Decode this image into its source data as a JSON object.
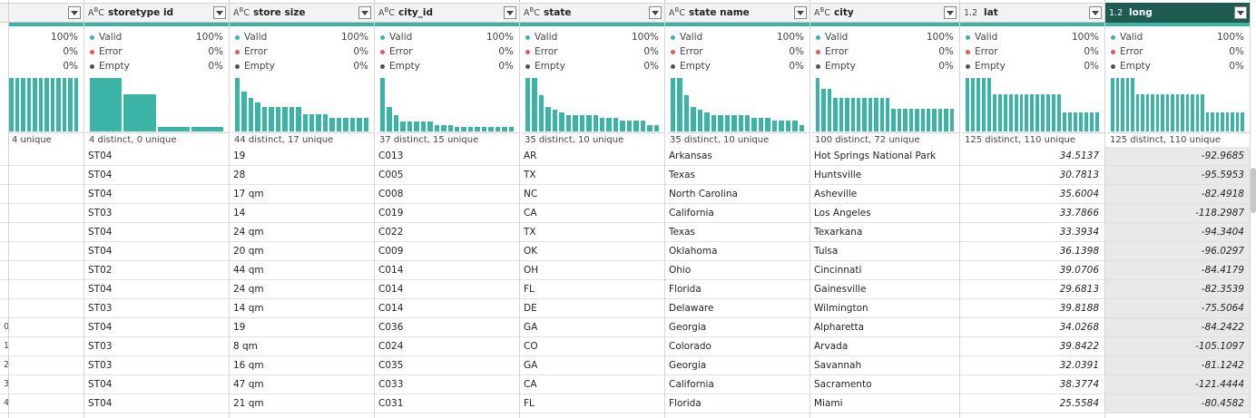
{
  "prev_column": {
    "valid_pct": "100%",
    "error_pct": "0%",
    "empty_pct": "0%",
    "distinct": "4 unique",
    "hist": [
      1,
      1,
      1,
      1,
      1,
      1,
      1,
      1,
      1,
      1,
      1,
      1
    ]
  },
  "row_index": [
    "",
    "",
    "",
    "",
    "",
    "",
    "",
    "",
    "",
    "0",
    "1",
    "2",
    "3",
    "4"
  ],
  "columns": [
    {
      "name": "storetype id",
      "type": "ABC",
      "valid_label": "Valid",
      "error_label": "Error",
      "empty_label": "Empty",
      "valid_pct": "100%",
      "error_pct": "0%",
      "empty_pct": "0%",
      "distinct": "4 distinct, 0 unique",
      "hist": [
        1.0,
        0.7,
        0.08,
        0.08
      ],
      "numeric": false,
      "values": [
        "ST04",
        "ST04",
        "ST04",
        "ST03",
        "ST04",
        "ST04",
        "ST02",
        "ST04",
        "ST03",
        "ST04",
        "ST03",
        "ST03",
        "ST04",
        "ST04"
      ]
    },
    {
      "name": "store size",
      "type": "ABC",
      "valid_label": "Valid",
      "error_label": "Error",
      "empty_label": "Empty",
      "valid_pct": "100%",
      "error_pct": "0%",
      "empty_pct": "0%",
      "distinct": "44 distinct, 17 unique",
      "hist": [
        1.0,
        0.75,
        0.62,
        0.55,
        0.45,
        0.45,
        0.45,
        0.45,
        0.45,
        0.45,
        0.32,
        0.32,
        0.32,
        0.32,
        0.26,
        0.26,
        0.26,
        0.26,
        0.26,
        0.26
      ],
      "numeric": false,
      "values": [
        "19",
        "28",
        "17 qm",
        "14",
        "24 qm",
        "20 qm",
        "44 qm",
        "24 qm",
        "14 qm",
        "19",
        "8 qm",
        "16 qm",
        "47 qm",
        "21 qm"
      ]
    },
    {
      "name": "city_id",
      "type": "ABC",
      "valid_label": "Valid",
      "error_label": "Error",
      "empty_label": "Empty",
      "valid_pct": "100%",
      "error_pct": "0%",
      "empty_pct": "0%",
      "distinct": "37 distinct, 15 unique",
      "hist": [
        1.0,
        0.45,
        0.3,
        0.18,
        0.18,
        0.18,
        0.18,
        0.18,
        0.12,
        0.12,
        0.12,
        0.08,
        0.08,
        0.08,
        0.08,
        0.08,
        0.08,
        0.08,
        0.08,
        0.08
      ],
      "numeric": false,
      "values": [
        "C013",
        "C005",
        "C008",
        "C019",
        "C022",
        "C009",
        "C014",
        "C014",
        "C014",
        "C036",
        "C024",
        "C035",
        "C033",
        "C031"
      ]
    },
    {
      "name": "state",
      "type": "ABC",
      "valid_label": "Valid",
      "error_label": "Error",
      "empty_label": "Empty",
      "valid_pct": "100%",
      "error_pct": "0%",
      "empty_pct": "0%",
      "distinct": "35 distinct, 10 unique",
      "hist": [
        1.0,
        1.0,
        0.68,
        0.45,
        0.4,
        0.35,
        0.3,
        0.3,
        0.3,
        0.3,
        0.3,
        0.25,
        0.25,
        0.25,
        0.2,
        0.2,
        0.2,
        0.2,
        0.12,
        0.12
      ],
      "numeric": false,
      "values": [
        "AR",
        "TX",
        "NC",
        "CA",
        "TX",
        "OK",
        "OH",
        "FL",
        "DE",
        "GA",
        "CO",
        "GA",
        "CA",
        "FL"
      ]
    },
    {
      "name": "state name",
      "type": "ABC",
      "valid_label": "Valid",
      "error_label": "Error",
      "empty_label": "Empty",
      "valid_pct": "100%",
      "error_pct": "0%",
      "empty_pct": "0%",
      "distinct": "35 distinct, 10 unique",
      "hist": [
        1.0,
        1.0,
        0.68,
        0.45,
        0.4,
        0.35,
        0.3,
        0.3,
        0.3,
        0.3,
        0.3,
        0.3,
        0.25,
        0.25,
        0.25,
        0.2,
        0.2,
        0.2,
        0.2,
        0.12
      ],
      "numeric": false,
      "values": [
        "Arkansas",
        "Texas",
        "North Carolina",
        "California",
        "Texas",
        "Oklahoma",
        "Ohio",
        "Florida",
        "Delaware",
        "Georgia",
        "Colorado",
        "Georgia",
        "California",
        "Florida"
      ]
    },
    {
      "name": "city",
      "type": "ABC",
      "valid_label": "Valid",
      "error_label": "Error",
      "empty_label": "Empty",
      "valid_pct": "100%",
      "error_pct": "0%",
      "empty_pct": "0%",
      "distinct": "100 distinct, 72 unique",
      "hist": [
        1.0,
        0.8,
        0.8,
        0.62,
        0.62,
        0.62,
        0.62,
        0.62,
        0.62,
        0.62,
        0.62,
        0.62,
        0.62,
        0.42,
        0.42,
        0.42,
        0.42,
        0.42,
        0.42,
        0.42,
        0.42,
        0.42,
        0.42,
        0.42
      ],
      "numeric": false,
      "values": [
        "Hot Springs National Park",
        "Huntsville",
        "Asheville",
        "Los Angeles",
        "Texarkana",
        "Tulsa",
        "Cincinnati",
        "Gainesville",
        "Wilmington",
        "Alpharetta",
        "Arvada",
        "Savannah",
        "Sacramento",
        "Miami"
      ]
    },
    {
      "name": "lat",
      "type": "1.2",
      "valid_label": "Valid",
      "error_label": "Error",
      "empty_label": "Empty",
      "valid_pct": "100%",
      "error_pct": "0%",
      "empty_pct": "0%",
      "distinct": "125 distinct, 110 unique",
      "hist": [
        1.0,
        1.0,
        1.0,
        1.0,
        1.0,
        0.7,
        0.7,
        0.7,
        0.7,
        0.7,
        0.7,
        0.7,
        0.7,
        0.7,
        0.7,
        0.7,
        0.7,
        0.7,
        0.35,
        0.35,
        0.35,
        0.35,
        0.35,
        0.35,
        0.35
      ],
      "numeric": true,
      "values": [
        "34.5137",
        "30.7813",
        "35.6004",
        "33.7866",
        "33.3934",
        "36.1398",
        "39.0706",
        "29.6813",
        "39.8188",
        "34.0268",
        "39.8422",
        "32.0391",
        "38.3774",
        "25.5584"
      ]
    },
    {
      "name": "long",
      "type": "1.2",
      "selected": true,
      "valid_label": "Valid",
      "error_label": "Error",
      "empty_label": "Empty",
      "valid_pct": "100%",
      "error_pct": "0%",
      "empty_pct": "0%",
      "distinct": "125 distinct, 110 unique",
      "hist": [
        1.0,
        1.0,
        1.0,
        1.0,
        1.0,
        0.7,
        0.7,
        0.7,
        0.7,
        0.7,
        0.7,
        0.7,
        0.7,
        0.7,
        0.7,
        0.7,
        0.7,
        0.7,
        0.7,
        0.35,
        0.35,
        0.35,
        0.35,
        0.35,
        0.35,
        0.35,
        0.35
      ],
      "numeric": true,
      "values": [
        "-92.9685",
        "-95.5953",
        "-82.4918",
        "-118.2987",
        "-94.3404",
        "-96.0297",
        "-84.4179",
        "-82.3539",
        "-75.5064",
        "-84.2422",
        "-105.1097",
        "-81.1242",
        "-121.4444",
        "-80.4582"
      ]
    }
  ],
  "colors": {
    "accent": "#3bb4a6",
    "selected_header": "#1e5c52",
    "error_dot": "#e15a5a"
  }
}
